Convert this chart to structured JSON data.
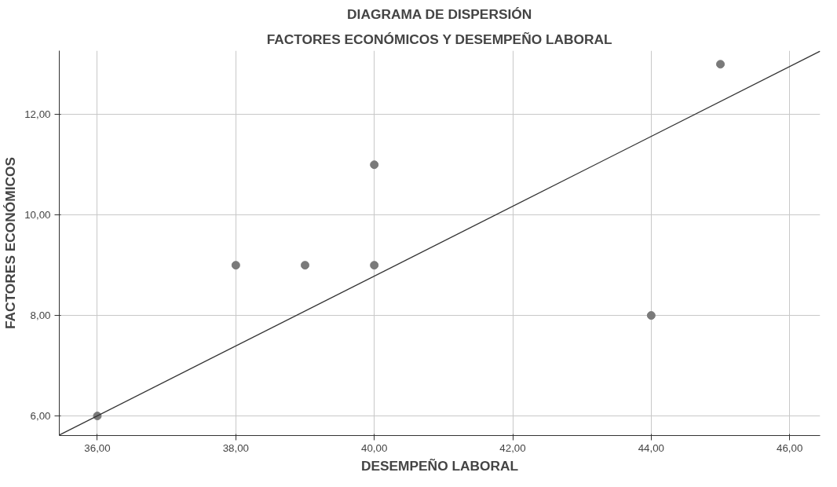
{
  "chart_data": {
    "type": "scatter",
    "title": "DIAGRAMA DE DISPERSIÓN",
    "subtitle": "FACTORES ECONÓMICOS Y DESEMPEÑO LABORAL",
    "xlabel": "DESEMPEÑO LABORAL",
    "ylabel": "FACTORES ECONÓMICOS",
    "series": [
      {
        "color": "#7a7a7a",
        "x": [
          36,
          38,
          39,
          40,
          40,
          44,
          45
        ],
        "values": [
          6,
          9,
          9,
          9,
          11,
          8,
          13
        ]
      },
      {
        "type": "line",
        "marker": "none",
        "color": "#333333",
        "x": [
          35.45,
          46.44
        ],
        "values": [
          5.62,
          13.26
        ]
      }
    ],
    "xlim": [
      35.45,
      46.44
    ],
    "ylim": [
      5.61,
      13.27
    ],
    "xticks": [
      {
        "value": 36,
        "label": "36,00"
      },
      {
        "value": 38,
        "label": "38,00"
      },
      {
        "value": 40,
        "label": "40,00"
      },
      {
        "value": 42,
        "label": "42,00"
      },
      {
        "value": 44,
        "label": "44,00"
      },
      {
        "value": 46,
        "label": "46,00"
      }
    ],
    "yticks": [
      {
        "value": 6,
        "label": "6,00"
      },
      {
        "value": 8,
        "label": "8,00"
      },
      {
        "value": 10,
        "label": "10,00"
      },
      {
        "value": 12,
        "label": "12,00"
      }
    ],
    "grid": true,
    "marker": "circle"
  }
}
